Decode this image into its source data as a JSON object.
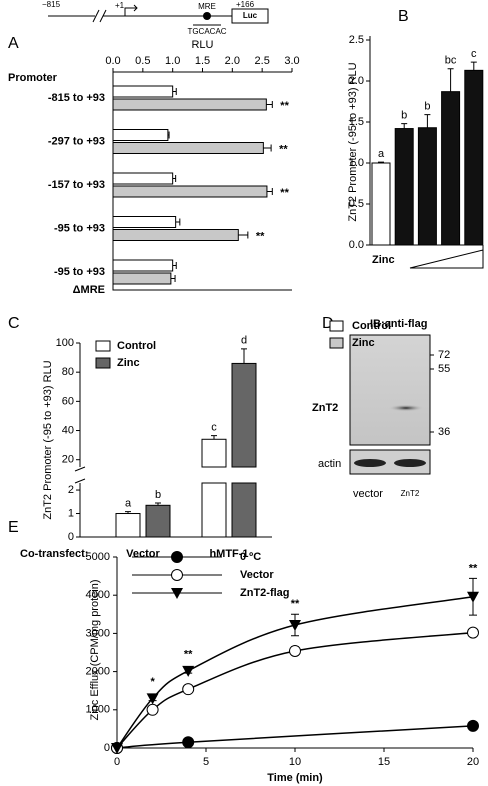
{
  "chart_data": [
    {
      "type": "hbar",
      "panel": "A",
      "xlabel": "RLU",
      "category_header": "Promoter",
      "schematic": {
        "left": "−815",
        "start": "+1",
        "element": "MRE",
        "end": "+166",
        "reporter": "Luc",
        "sequence": "TGCACAC"
      },
      "categories": [
        "-815 to +93",
        "-297 to +93",
        "-157 to +93",
        "-95 to +93",
        [
          "-95 to +93",
          "ΔMRE"
        ]
      ],
      "xlim": [
        0,
        3
      ],
      "xticks": [
        {
          "value": 0,
          "label": "0.0"
        },
        0.5,
        {
          "value": 1,
          "label": "1.0"
        },
        1.5,
        {
          "value": 2,
          "label": "2.0"
        },
        2.5,
        {
          "value": 3,
          "label": "3.0"
        }
      ],
      "series": [
        {
          "name": "Control",
          "color": "#ffffff",
          "values": [
            1.0,
            0.92,
            1.0,
            1.05,
            1.0
          ],
          "errors": [
            0.06,
            0.02,
            0.05,
            0.07,
            0.06
          ]
        },
        {
          "name": "Zinc",
          "color": "#c8c8c8",
          "values": [
            2.57,
            2.52,
            2.58,
            2.1,
            0.97
          ],
          "errors": [
            0.1,
            0.13,
            0.09,
            0.16,
            0.07
          ],
          "labels": [
            "**",
            "**",
            "**",
            "**",
            null
          ]
        }
      ]
    },
    {
      "type": "bar",
      "panel": "B",
      "ylabel": "ZnT2 Promoter (-95 to +93) RLU",
      "xlabel": "Zinc",
      "ylim": [
        0,
        2.5
      ],
      "yticks": [
        {
          "value": 0,
          "label": "0.0"
        },
        0.5,
        {
          "value": 1,
          "label": "1.0"
        },
        1.5,
        {
          "value": 2,
          "label": "2.0"
        },
        2.5
      ],
      "values": [
        1.0,
        1.42,
        1.43,
        1.87,
        2.13
      ],
      "errors": [
        0.01,
        0.06,
        0.16,
        0.28,
        0.1
      ],
      "colors": [
        "#ffffff",
        "#111111",
        "#111111",
        "#111111",
        "#111111"
      ],
      "labels": [
        "a",
        "b",
        "b",
        "bc",
        "c"
      ]
    },
    {
      "type": "broken_bar",
      "panel": "C",
      "ylabel": "ZnT2 Promoter (-95 to +93) RLU",
      "category_header": "Co-transfect:",
      "categories": [
        "Vector",
        "hMTF-1"
      ],
      "ylim_lower": [
        0,
        2.3
      ],
      "yticks_lower": [
        0,
        1,
        2
      ],
      "ylim_upper": [
        15,
        100
      ],
      "yticks_upper": [
        20,
        40,
        60,
        80,
        100
      ],
      "series": [
        {
          "name": "Control",
          "color": "#ffffff",
          "values": [
            1.0,
            34
          ],
          "errors": [
            0.08,
            2.5
          ],
          "labels": [
            "a",
            "c"
          ]
        },
        {
          "name": "Zinc",
          "color": "#666666",
          "values": [
            1.35,
            86
          ],
          "errors": [
            0.1,
            10
          ],
          "labels": [
            "b",
            "d"
          ]
        }
      ]
    },
    {
      "type": "blot",
      "panel": "D",
      "title": "IB:anti-flag",
      "rows": [
        "ZnT2",
        "actin"
      ],
      "lanes": [
        "vector",
        "ZnT2"
      ],
      "markers": [
        72,
        55,
        36
      ]
    },
    {
      "type": "line",
      "panel": "E",
      "xlabel": "Time (min)",
      "ylabel": "Zinc Efflux (CPM/mg protein)",
      "xlim": [
        0,
        20
      ],
      "xticks": [
        0,
        5,
        10,
        15,
        20
      ],
      "ylim": [
        0,
        5000
      ],
      "yticks": [
        0,
        1000,
        2000,
        3000,
        4000,
        5000
      ],
      "legend": "upper left",
      "series": [
        {
          "name": "0 ºC",
          "color": "#000000",
          "marker": "circle-filled",
          "x": [
            0,
            4,
            20
          ],
          "values": [
            0,
            150,
            580
          ],
          "errors": [
            0,
            20,
            30
          ]
        },
        {
          "name": "Vector",
          "color": "#000000",
          "marker": "circle-open",
          "x": [
            0,
            2,
            4,
            10,
            20
          ],
          "values": [
            0,
            1000,
            1540,
            2540,
            3020
          ],
          "errors": [
            0,
            40,
            60,
            110,
            50
          ]
        },
        {
          "name": "ZnT2-flag",
          "color": "#000000",
          "marker": "triangle",
          "x": [
            0,
            2,
            4,
            10,
            20
          ],
          "values": [
            0,
            1300,
            2020,
            3220,
            3960
          ],
          "errors": [
            0,
            60,
            60,
            280,
            480
          ],
          "labels": [
            null,
            "*",
            "**",
            "**",
            "**"
          ]
        }
      ]
    }
  ]
}
